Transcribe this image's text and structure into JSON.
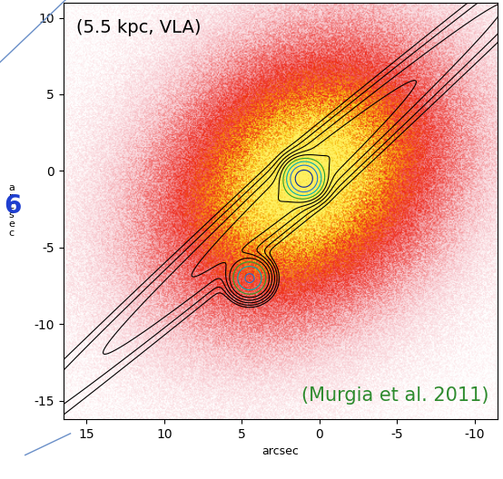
{
  "chart_data": {
    "type": "image",
    "xlabel": "arcsec",
    "ylabel": "arcsec",
    "annotations": [
      "(5.5 kpc, VLA)",
      "(Murgia et al. 2011)",
      "6"
    ],
    "xlim": [
      16.5,
      -11.5
    ],
    "ylim": [
      -16.2,
      11
    ],
    "xticks": [
      15,
      10,
      5,
      0,
      -5,
      -10
    ],
    "yticks": [
      10,
      5,
      0,
      -5,
      -10,
      -15
    ],
    "grid": false
  }
}
